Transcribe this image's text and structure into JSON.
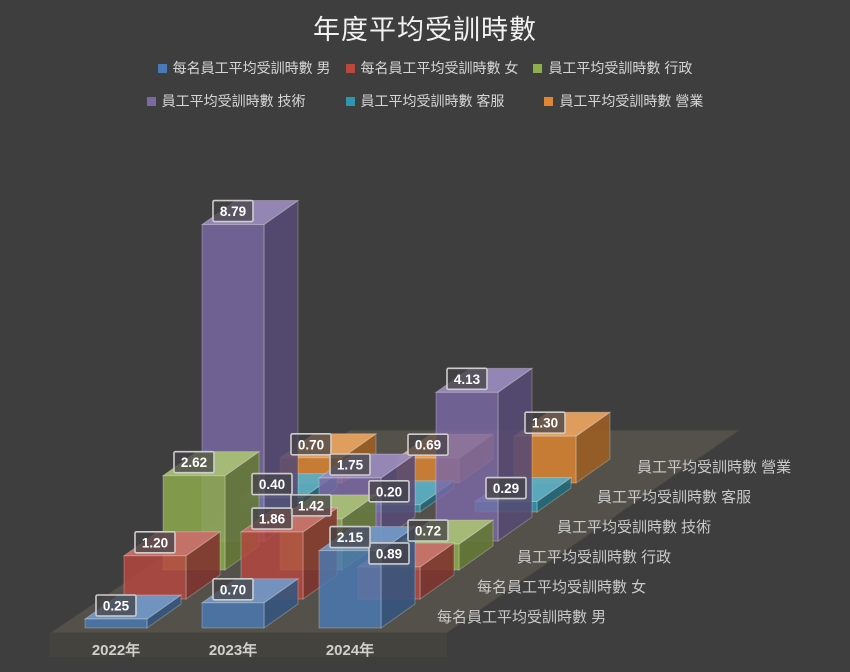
{
  "title": "年度平均受訓時數",
  "colors": {
    "background": "#3e3e3e",
    "floor_top": "#53514a",
    "floor_front": "#45433d",
    "label_box_fill": "rgba(68,66,70,0.75)",
    "label_box_border": "#cdcdcd",
    "value_label_text": "#ffffff",
    "series_axis_text": "#c9c9c9",
    "category_axis_text": "#d2d0cd",
    "legend_text": "#d6d6d6",
    "title_text": "#f2f2f2"
  },
  "chart_data": {
    "type": "bar",
    "variant": "3d-column",
    "title": "年度平均受訓時數",
    "categories": [
      "2022年",
      "2023年",
      "2024年"
    ],
    "series": [
      {
        "name": "每名員工平均受訓時數 男",
        "color": "#4a7ab5",
        "values": [
          0.25,
          0.7,
          2.15
        ]
      },
      {
        "name": "每名員工平均受訓時數 女",
        "color": "#b7473f",
        "values": [
          1.2,
          1.86,
          0.89
        ]
      },
      {
        "name": "員工平均受訓時數 行政",
        "color": "#8fad4d",
        "values": [
          2.62,
          1.42,
          0.72
        ]
      },
      {
        "name": "員工平均受訓時數 技術",
        "color": "#7b69a6",
        "values": [
          8.79,
          1.75,
          4.13
        ]
      },
      {
        "name": "員工平均受訓時數 客服",
        "color": "#2f96b0",
        "values": [
          0.4,
          0.2,
          0.29
        ]
      },
      {
        "name": "員工平均受訓時數 營業",
        "color": "#e08632",
        "values": [
          0.7,
          0.69,
          1.3
        ]
      }
    ],
    "legend_position": "top",
    "legend_rows": [
      [
        0,
        1,
        2
      ],
      [
        3,
        4,
        5
      ]
    ],
    "value_label_decimals": 2,
    "gridlines": false,
    "value_axis_visible": false
  }
}
